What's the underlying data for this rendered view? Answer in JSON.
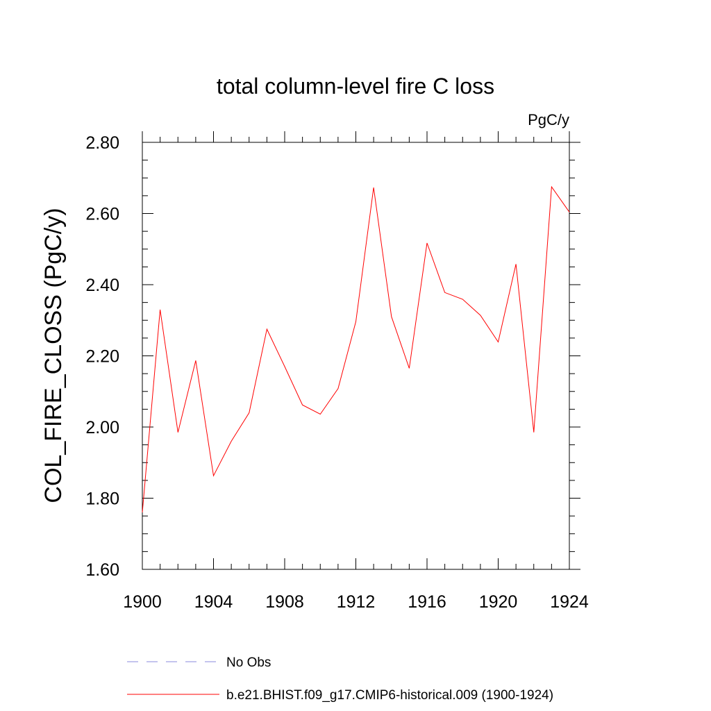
{
  "chart_data": {
    "type": "line",
    "title": "total column-level fire C loss",
    "unit_label": "PgC/y",
    "ylabel": "COL_FIRE_CLOSS  (PgC/y)",
    "xlabel": "",
    "xlim": [
      1900,
      1924
    ],
    "ylim": [
      1.6,
      2.8
    ],
    "x_ticks": [
      "1900",
      "1904",
      "1908",
      "1912",
      "1916",
      "1920",
      "1924"
    ],
    "y_ticks": [
      "1.60",
      "1.80",
      "2.00",
      "2.20",
      "2.40",
      "2.60",
      "2.80"
    ],
    "grid": false,
    "series": [
      {
        "name": "b.e21.BHIST.f09_g17.CMIP6-historical.009 (1900-1924)",
        "color": "#ff0000",
        "style": "solid",
        "x": [
          1900,
          1901,
          1902,
          1903,
          1904,
          1905,
          1906,
          1907,
          1908,
          1909,
          1910,
          1911,
          1912,
          1913,
          1914,
          1915,
          1916,
          1917,
          1918,
          1919,
          1920,
          1921,
          1922,
          1923,
          1924
        ],
        "values": [
          1.76,
          2.33,
          1.985,
          2.187,
          1.863,
          1.96,
          2.04,
          2.275,
          2.17,
          2.062,
          2.036,
          2.108,
          2.296,
          2.673,
          2.31,
          2.165,
          2.517,
          2.378,
          2.359,
          2.314,
          2.239,
          2.458,
          1.985,
          2.675,
          2.604
        ]
      }
    ],
    "legend": [
      {
        "label": "No Obs",
        "color": "#8888dd",
        "style": "dashed"
      },
      {
        "label": "b.e21.BHIST.f09_g17.CMIP6-historical.009 (1900-1924)",
        "color": "#ff0000",
        "style": "solid"
      }
    ],
    "legend_position": "bottom"
  }
}
